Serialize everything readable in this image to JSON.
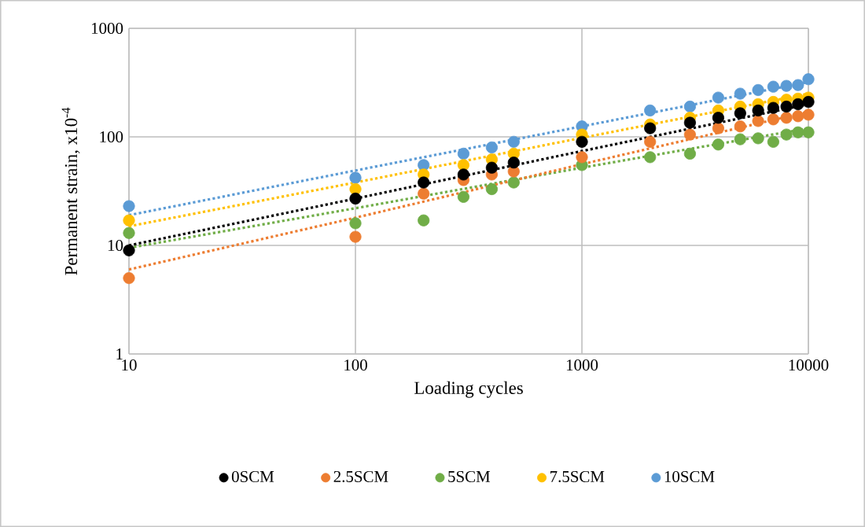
{
  "chart_data": {
    "type": "scatter",
    "xlabel": "Loading cycles",
    "ylabel": "Permanent strain, x10$^{-4}$",
    "log": "xy",
    "grid": true,
    "legend": "bottom",
    "marker": "circle",
    "xlim": [
      10,
      10000
    ],
    "ylim": [
      1,
      1000
    ],
    "xticks": [
      10,
      100,
      1000,
      10000
    ],
    "yticks": [
      1,
      10,
      100,
      1000
    ],
    "x": [
      10,
      100,
      200,
      300,
      400,
      500,
      1000,
      2000,
      3000,
      4000,
      5000,
      6000,
      7000,
      8000,
      9000,
      10000
    ],
    "series": [
      {
        "name": "0SCM",
        "color": "#000000",
        "values": [
          9,
          27,
          38,
          45,
          52,
          58,
          90,
          120,
          135,
          150,
          165,
          175,
          185,
          190,
          200,
          210
        ]
      },
      {
        "name": "2.5SCM",
        "color": "#ed7d31",
        "values": [
          5,
          12,
          30,
          40,
          45,
          48,
          65,
          90,
          105,
          120,
          125,
          140,
          145,
          150,
          155,
          160
        ]
      },
      {
        "name": "5SCM",
        "color": "#70ad47",
        "values": [
          13,
          16,
          17,
          28,
          33,
          38,
          55,
          65,
          70,
          85,
          95,
          97,
          90,
          105,
          110,
          110
        ]
      },
      {
        "name": "7.5SCM",
        "color": "#ffc000",
        "values": [
          17,
          33,
          45,
          55,
          62,
          70,
          105,
          130,
          150,
          175,
          190,
          200,
          210,
          220,
          225,
          230
        ]
      },
      {
        "name": "10SCM",
        "color": "#5b9bd5",
        "values": [
          23,
          42,
          55,
          70,
          80,
          90,
          125,
          175,
          190,
          230,
          250,
          270,
          290,
          295,
          300,
          340
        ]
      },
      {
        "type": "line",
        "color": "#000000",
        "x": [
          10,
          100,
          1000,
          10000
        ],
        "values": [
          10,
          27,
          74,
          200
        ],
        "marker": "none",
        "line_style": "dotted"
      },
      {
        "type": "line",
        "color": "#ed7d31",
        "x": [
          10,
          100,
          1000,
          10000
        ],
        "values": [
          6,
          18,
          56,
          170
        ],
        "marker": "none",
        "line_style": "dotted"
      },
      {
        "type": "line",
        "color": "#70ad47",
        "x": [
          10,
          100,
          1000,
          10000
        ],
        "values": [
          9.5,
          22,
          52,
          120
        ],
        "marker": "none",
        "line_style": "dotted"
      },
      {
        "type": "line",
        "color": "#ffc000",
        "x": [
          10,
          100,
          1000,
          10000
        ],
        "values": [
          15,
          38,
          98,
          250
        ],
        "marker": "none",
        "line_style": "dotted"
      },
      {
        "type": "line",
        "color": "#5b9bd5",
        "x": [
          10,
          100,
          1000,
          10000
        ],
        "values": [
          19,
          49,
          125,
          320
        ],
        "marker": "none",
        "line_style": "dotted"
      }
    ]
  }
}
